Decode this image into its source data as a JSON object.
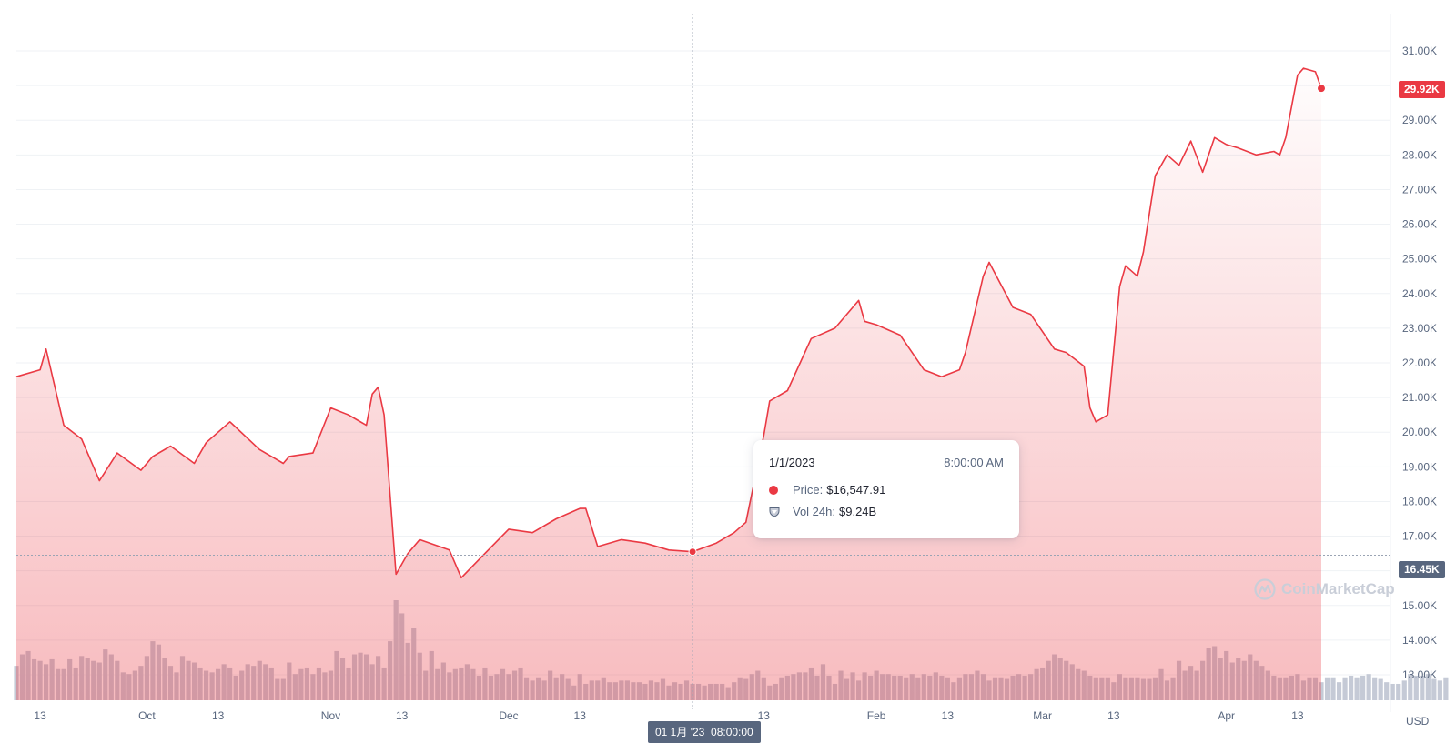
{
  "chart_data": {
    "type": "area",
    "y_axis": {
      "min": 12500,
      "max": 31500,
      "tick_values": [
        13000,
        14000,
        15000,
        16000,
        17000,
        18000,
        19000,
        20000,
        21000,
        22000,
        23000,
        24000,
        25000,
        26000,
        27000,
        28000,
        29000,
        30000,
        31000
      ],
      "tick_labels": [
        "13.00K",
        "14.00K",
        "15.00K",
        "16.00K",
        "17.00K",
        "18.00K",
        "19.00K",
        "20.00K",
        "21.00K",
        "22.00K",
        "23.00K",
        "24.00K",
        "25.00K",
        "26.00K",
        "27.00K",
        "28.00K",
        "29.00K",
        "30.00K",
        "31.00K"
      ],
      "currency": "USD"
    },
    "x_axis": {
      "start": "2022-09-09",
      "end": "2023-04-17",
      "ticks": [
        {
          "date": "2022-09-13",
          "label": "13"
        },
        {
          "date": "2022-10-01",
          "label": "Oct"
        },
        {
          "date": "2022-10-13",
          "label": "13"
        },
        {
          "date": "2022-11-01",
          "label": "Nov"
        },
        {
          "date": "2022-11-13",
          "label": "13"
        },
        {
          "date": "2022-12-01",
          "label": "Dec"
        },
        {
          "date": "2022-12-13",
          "label": "13"
        },
        {
          "date": "2023-01-13",
          "label": "13"
        },
        {
          "date": "2023-02-01",
          "label": "Feb"
        },
        {
          "date": "2023-02-13",
          "label": "13"
        },
        {
          "date": "2023-03-01",
          "label": "Mar"
        },
        {
          "date": "2023-03-13",
          "label": "13"
        },
        {
          "date": "2023-04-01",
          "label": "Apr"
        },
        {
          "date": "2023-04-13",
          "label": "13"
        }
      ]
    },
    "price_series": {
      "dates": [
        "2022-09-09",
        "2022-09-13",
        "2022-09-14",
        "2022-09-17",
        "2022-09-20",
        "2022-09-23",
        "2022-09-26",
        "2022-09-30",
        "2022-10-02",
        "2022-10-05",
        "2022-10-09",
        "2022-10-11",
        "2022-10-15",
        "2022-10-20",
        "2022-10-24",
        "2022-10-25",
        "2022-10-29",
        "2022-11-01",
        "2022-11-04",
        "2022-11-05",
        "2022-11-07",
        "2022-11-08",
        "2022-11-09",
        "2022-11-10",
        "2022-11-12",
        "2022-11-14",
        "2022-11-16",
        "2022-11-21",
        "2022-11-23",
        "2022-11-27",
        "2022-12-01",
        "2022-12-05",
        "2022-12-09",
        "2022-12-13",
        "2022-12-14",
        "2022-12-16",
        "2022-12-20",
        "2022-12-24",
        "2022-12-28",
        "2023-01-01",
        "2023-01-05",
        "2023-01-08",
        "2023-01-10",
        "2023-01-13",
        "2023-01-14",
        "2023-01-17",
        "2023-01-21",
        "2023-01-25",
        "2023-01-29",
        "2023-01-30",
        "2023-02-01",
        "2023-02-05",
        "2023-02-09",
        "2023-02-12",
        "2023-02-15",
        "2023-02-16",
        "2023-02-19",
        "2023-02-20",
        "2023-02-24",
        "2023-02-27",
        "2023-03-03",
        "2023-03-05",
        "2023-03-08",
        "2023-03-09",
        "2023-03-10",
        "2023-03-12",
        "2023-03-14",
        "2023-03-15",
        "2023-03-17",
        "2023-03-18",
        "2023-03-20",
        "2023-03-22",
        "2023-03-24",
        "2023-03-26",
        "2023-03-28",
        "2023-03-30",
        "2023-04-01",
        "2023-04-03",
        "2023-04-06",
        "2023-04-09",
        "2023-04-10",
        "2023-04-11",
        "2023-04-13",
        "2023-04-14",
        "2023-04-16",
        "2023-04-17"
      ],
      "values": [
        21600,
        21800,
        22400,
        20200,
        19800,
        18600,
        19400,
        18900,
        19300,
        19600,
        19100,
        19700,
        20300,
        19500,
        19100,
        19300,
        19400,
        20700,
        20500,
        20400,
        20200,
        21100,
        21300,
        20500,
        15900,
        16500,
        16900,
        16600,
        15800,
        16500,
        17200,
        17100,
        17500,
        17800,
        17800,
        16700,
        16900,
        16800,
        16600,
        16550,
        16800,
        17100,
        17400,
        19900,
        20900,
        21200,
        22700,
        23000,
        23800,
        23200,
        23100,
        22800,
        21800,
        21600,
        21800,
        22300,
        24500,
        24900,
        23600,
        23400,
        22400,
        22300,
        21900,
        20700,
        20300,
        20500,
        24200,
        24800,
        24500,
        25200,
        27400,
        28000,
        27700,
        28400,
        27500,
        28500,
        28300,
        28200,
        28000,
        28100,
        28000,
        28500,
        30300,
        30500,
        30400,
        29920
      ]
    },
    "volume_series": {
      "unit": "USD",
      "start": "2022-09-09",
      "daily_values_billions": [
        21,
        28,
        30,
        25,
        24,
        22,
        25,
        19,
        19,
        25,
        20,
        27,
        26,
        24,
        23,
        31,
        28,
        24,
        17,
        16,
        18,
        21,
        27,
        36,
        34,
        26,
        21,
        17,
        27,
        24,
        23,
        20,
        18,
        17,
        19,
        22,
        20,
        15,
        18,
        22,
        21,
        24,
        22,
        20,
        13,
        13,
        23,
        16,
        19,
        20,
        16,
        20,
        17,
        18,
        30,
        26,
        20,
        28,
        29,
        28,
        22,
        27,
        20,
        36,
        61,
        53,
        35,
        44,
        29,
        18,
        30,
        19,
        23,
        17,
        19,
        20,
        22,
        19,
        15,
        20,
        15,
        16,
        19,
        16,
        18,
        20,
        14,
        12,
        14,
        12,
        18,
        14,
        16,
        13,
        9,
        16,
        10,
        12,
        12,
        14,
        11,
        11,
        12,
        12,
        11,
        11,
        10,
        12,
        11,
        13,
        9,
        11,
        10,
        12,
        10,
        10,
        9,
        10,
        10,
        10,
        8,
        11,
        14,
        13,
        16,
        18,
        14,
        9,
        10,
        14,
        15,
        16,
        17,
        17,
        20,
        15,
        22,
        15,
        10,
        18,
        13,
        17,
        12,
        17,
        15,
        18,
        16,
        16,
        15,
        15,
        14,
        16,
        14,
        16,
        15,
        17,
        15,
        14,
        11,
        14,
        16,
        16,
        18,
        16,
        12,
        14,
        14,
        13,
        15,
        16,
        15,
        16,
        19,
        20,
        24,
        28,
        26,
        24,
        22,
        19,
        18,
        15,
        14,
        14,
        14,
        11,
        16,
        14,
        14,
        14,
        13,
        13,
        14,
        19,
        12,
        14,
        24,
        18,
        21,
        18,
        24,
        32,
        33,
        26,
        30,
        23,
        26,
        24,
        28,
        24,
        21,
        18,
        15,
        14,
        14,
        15,
        16,
        12,
        14,
        14,
        11,
        14,
        14,
        11,
        14,
        15,
        14,
        15,
        16,
        14,
        13,
        11,
        10,
        10,
        12,
        16,
        15,
        15,
        16,
        13,
        12,
        14
      ]
    },
    "tooltip": {
      "date": "1/1/2023",
      "time": "8:00:00 AM",
      "price_label": "Price:",
      "price_value": "$16,547.91",
      "vol_label": "Vol 24h:",
      "vol_value": "$9.24B"
    },
    "crosshair": {
      "date": "2023-01-01",
      "price": 16450,
      "price_label": "16.45K",
      "date_label_day": "01 1月 '23",
      "date_label_time": "08:00:00"
    },
    "last_price": {
      "value": 29920,
      "label": "29.92K"
    },
    "watermark": "CoinMarketCap",
    "colors": {
      "line": "#ea3943",
      "volume": "#c5cad6",
      "grid": "#eff2f5",
      "axis_text": "#58667e",
      "tag_neutral": "#58667e"
    }
  }
}
